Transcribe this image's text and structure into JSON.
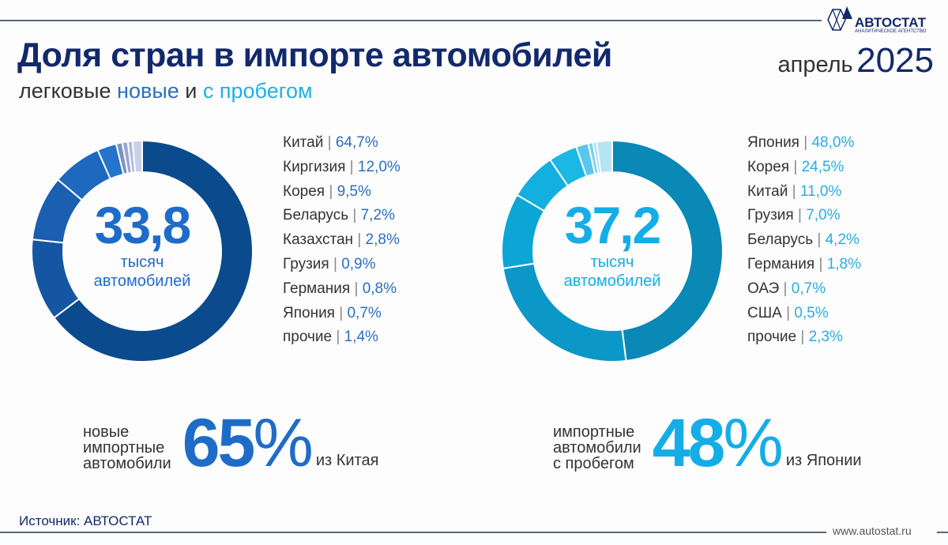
{
  "header": {
    "title": "Доля стран в импорте автомобилей",
    "subtitle_prefix": "легковые",
    "subtitle_new": "новые",
    "subtitle_and": "и",
    "subtitle_used": "с пробегом",
    "period_month": "апрель",
    "period_year": "2025"
  },
  "logo": {
    "name": "АВТОСТАТ",
    "tagline": "АНАЛИТИЧЕСКОЕ АГЕНТСТВО"
  },
  "chart_data": [
    {
      "type": "pie",
      "variant": "donut",
      "center_value": "33,8",
      "center_label_1": "тысяч",
      "center_label_2": "автомобилей",
      "value_color": "#2a6fc0",
      "categories": [
        "Китай",
        "Киргизия",
        "Корея",
        "Беларусь",
        "Казахстан",
        "Грузия",
        "Германия",
        "Япония",
        "прочие"
      ],
      "values": [
        64.7,
        12.0,
        9.5,
        7.2,
        2.8,
        0.9,
        0.8,
        0.7,
        1.4
      ],
      "labels": [
        "64,7%",
        "12,0%",
        "9,5%",
        "7,2%",
        "2,8%",
        "0,9%",
        "0,8%",
        "0,7%",
        "1,4%"
      ],
      "colors": [
        "#0b4a8c",
        "#1556a2",
        "#1a5fb0",
        "#1e68bf",
        "#2473cc",
        "#7d93c6",
        "#98a8d2",
        "#b0bcdc",
        "#c8d1e8"
      ]
    },
    {
      "type": "pie",
      "variant": "donut",
      "center_value": "37,2",
      "center_label_1": "тысяч",
      "center_label_2": "автомобилей",
      "value_color": "#27ade3",
      "categories": [
        "Япония",
        "Корея",
        "Китай",
        "Грузия",
        "Беларусь",
        "Германия",
        "ОАЭ",
        "США",
        "прочие"
      ],
      "values": [
        48.0,
        24.5,
        11.0,
        7.0,
        4.2,
        1.8,
        0.7,
        0.5,
        2.3
      ],
      "labels": [
        "48,0%",
        "24,5%",
        "11,0%",
        "7,0%",
        "4,2%",
        "1,8%",
        "0,7%",
        "0,5%",
        "2,3%"
      ],
      "colors": [
        "#0a88b6",
        "#0b98c8",
        "#0ba5d6",
        "#13afdf",
        "#1bb8e6",
        "#5ac6ec",
        "#7cd1ef",
        "#9adbf2",
        "#b6e4f5"
      ]
    }
  ],
  "facts": [
    {
      "line1": "новые",
      "line2": "импортные",
      "line3": "автомобили",
      "value": "65",
      "unit": "%",
      "from": "из Китая",
      "color": "#1f6cc8"
    },
    {
      "line1": "импортные",
      "line2": "автомобили",
      "line3": "с пробегом",
      "value": "48",
      "unit": "%",
      "from": "из Японии",
      "color": "#14ade8"
    }
  ],
  "footer": {
    "source": "Источник: АВТОСТАТ",
    "site": "www.autostat.ru"
  }
}
